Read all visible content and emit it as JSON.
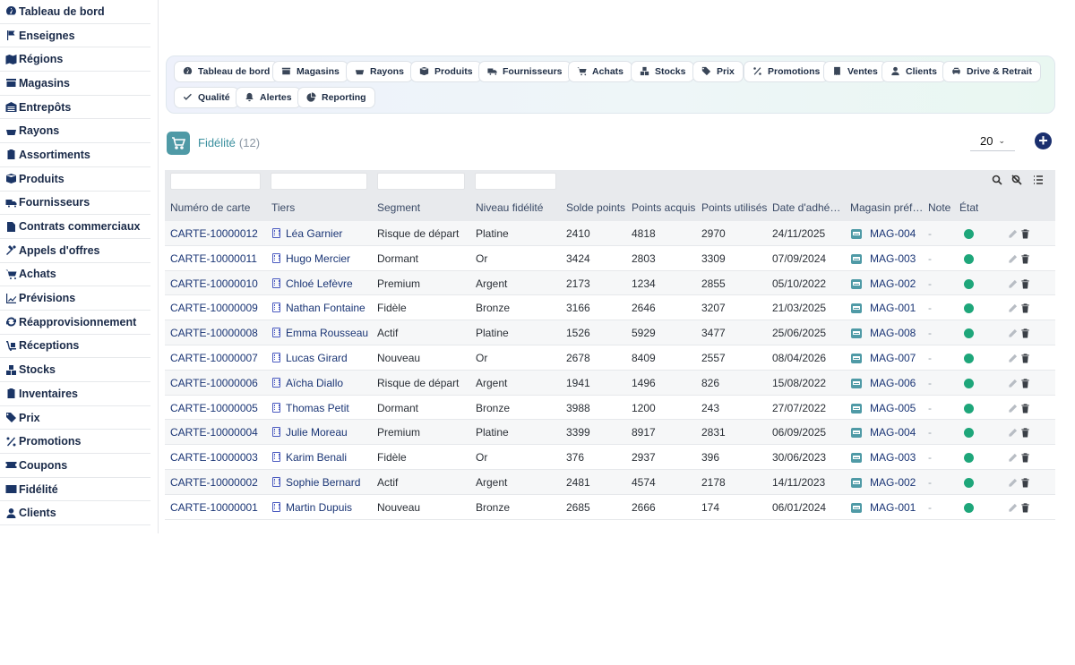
{
  "sidebar": {
    "items": [
      {
        "label": "Tableau de bord",
        "icon": "gauge-icon"
      },
      {
        "label": "Enseignes",
        "icon": "flag-icon"
      },
      {
        "label": "Régions",
        "icon": "map-icon"
      },
      {
        "label": "Magasins",
        "icon": "store-icon"
      },
      {
        "label": "Entrepôts",
        "icon": "warehouse-icon"
      },
      {
        "label": "Rayons",
        "icon": "basket-icon"
      },
      {
        "label": "Assortiments",
        "icon": "clipboard-icon"
      },
      {
        "label": "Produits",
        "icon": "box-icon"
      },
      {
        "label": "Fournisseurs",
        "icon": "truck-icon"
      },
      {
        "label": "Contrats commerciaux",
        "icon": "contract-icon"
      },
      {
        "label": "Appels d'offres",
        "icon": "gavel-icon"
      },
      {
        "label": "Achats",
        "icon": "cart-icon"
      },
      {
        "label": "Prévisions",
        "icon": "chart-line-icon"
      },
      {
        "label": "Réapprovisionnement",
        "icon": "sync-icon"
      },
      {
        "label": "Réceptions",
        "icon": "dolly-icon"
      },
      {
        "label": "Stocks",
        "icon": "boxes-icon"
      },
      {
        "label": "Inventaires",
        "icon": "clipboard-check-icon"
      },
      {
        "label": "Prix",
        "icon": "tags-icon"
      },
      {
        "label": "Promotions",
        "icon": "percent-icon"
      },
      {
        "label": "Coupons",
        "icon": "ticket-icon"
      },
      {
        "label": "Fidélité",
        "icon": "id-card-icon"
      },
      {
        "label": "Clients",
        "icon": "user-icon"
      }
    ]
  },
  "nav": {
    "buttons": [
      {
        "label": "Tableau de bord",
        "icon": "gauge-icon"
      },
      {
        "label": "Magasins",
        "icon": "store-icon"
      },
      {
        "label": "Rayons",
        "icon": "basket-icon"
      },
      {
        "label": "Produits",
        "icon": "box-icon"
      },
      {
        "label": "Fournisseurs",
        "icon": "truck-icon"
      },
      {
        "label": "Achats",
        "icon": "cart-icon"
      },
      {
        "label": "Stocks",
        "icon": "boxes-icon"
      },
      {
        "label": "Prix",
        "icon": "tags-icon"
      },
      {
        "label": "Promotions",
        "icon": "percent-icon"
      },
      {
        "label": "Ventes",
        "icon": "receipt-icon"
      },
      {
        "label": "Clients",
        "icon": "user-icon"
      },
      {
        "label": "Drive & Retrait",
        "icon": "car-icon"
      },
      {
        "label": "Qualité",
        "icon": "check-icon"
      },
      {
        "label": "Alertes",
        "icon": "bell-icon"
      },
      {
        "label": "Reporting",
        "icon": "pie-icon"
      }
    ]
  },
  "header": {
    "title": "Fidélité",
    "count": "(12)",
    "page_size": "20"
  },
  "table": {
    "columns": [
      "Numéro de carte",
      "Tiers",
      "Segment",
      "Niveau fidélité",
      "Solde points",
      "Points acquis",
      "Points utilisés",
      "Date d'adhé…",
      "Magasin préf…",
      "Note",
      "État"
    ],
    "rows": [
      {
        "card": "CARTE-10000012",
        "tiers": "Léa Garnier",
        "segment": "Risque de départ",
        "level": "Platine",
        "balance": "2410",
        "earned": "4818",
        "used": "2970",
        "date": "24/11/2025",
        "store": "MAG-004",
        "note": "-"
      },
      {
        "card": "CARTE-10000011",
        "tiers": "Hugo Mercier",
        "segment": "Dormant",
        "level": "Or",
        "balance": "3424",
        "earned": "2803",
        "used": "3309",
        "date": "07/09/2024",
        "store": "MAG-003",
        "note": "-"
      },
      {
        "card": "CARTE-10000010",
        "tiers": "Chloé Lefèvre",
        "segment": "Premium",
        "level": "Argent",
        "balance": "2173",
        "earned": "1234",
        "used": "2855",
        "date": "05/10/2022",
        "store": "MAG-002",
        "note": "-"
      },
      {
        "card": "CARTE-10000009",
        "tiers": "Nathan Fontaine",
        "segment": "Fidèle",
        "level": "Bronze",
        "balance": "3166",
        "earned": "2646",
        "used": "3207",
        "date": "21/03/2025",
        "store": "MAG-001",
        "note": "-"
      },
      {
        "card": "CARTE-10000008",
        "tiers": "Emma Rousseau",
        "segment": "Actif",
        "level": "Platine",
        "balance": "1526",
        "earned": "5929",
        "used": "3477",
        "date": "25/06/2025",
        "store": "MAG-008",
        "note": "-"
      },
      {
        "card": "CARTE-10000007",
        "tiers": "Lucas Girard",
        "segment": "Nouveau",
        "level": "Or",
        "balance": "2678",
        "earned": "8409",
        "used": "2557",
        "date": "08/04/2026",
        "store": "MAG-007",
        "note": "-"
      },
      {
        "card": "CARTE-10000006",
        "tiers": "Aïcha Diallo",
        "segment": "Risque de départ",
        "level": "Argent",
        "balance": "1941",
        "earned": "1496",
        "used": "826",
        "date": "15/08/2022",
        "store": "MAG-006",
        "note": "-"
      },
      {
        "card": "CARTE-10000005",
        "tiers": "Thomas Petit",
        "segment": "Dormant",
        "level": "Bronze",
        "balance": "3988",
        "earned": "1200",
        "used": "243",
        "date": "27/07/2022",
        "store": "MAG-005",
        "note": "-"
      },
      {
        "card": "CARTE-10000004",
        "tiers": "Julie Moreau",
        "segment": "Premium",
        "level": "Platine",
        "balance": "3399",
        "earned": "8917",
        "used": "2831",
        "date": "06/09/2025",
        "store": "MAG-004",
        "note": "-"
      },
      {
        "card": "CARTE-10000003",
        "tiers": "Karim Benali",
        "segment": "Fidèle",
        "level": "Or",
        "balance": "376",
        "earned": "2937",
        "used": "396",
        "date": "30/06/2023",
        "store": "MAG-003",
        "note": "-"
      },
      {
        "card": "CARTE-10000002",
        "tiers": "Sophie Bernard",
        "segment": "Actif",
        "level": "Argent",
        "balance": "2481",
        "earned": "4574",
        "used": "2178",
        "date": "14/11/2023",
        "store": "MAG-002",
        "note": "-"
      },
      {
        "card": "CARTE-10000001",
        "tiers": "Martin Dupuis",
        "segment": "Nouveau",
        "level": "Bronze",
        "balance": "2685",
        "earned": "2666",
        "used": "174",
        "date": "06/01/2024",
        "store": "MAG-001",
        "note": "-"
      }
    ]
  },
  "colors": {
    "accent": "#3a8f9e",
    "status_active": "#1ea67a",
    "primary_dark": "#1a2f6e"
  }
}
